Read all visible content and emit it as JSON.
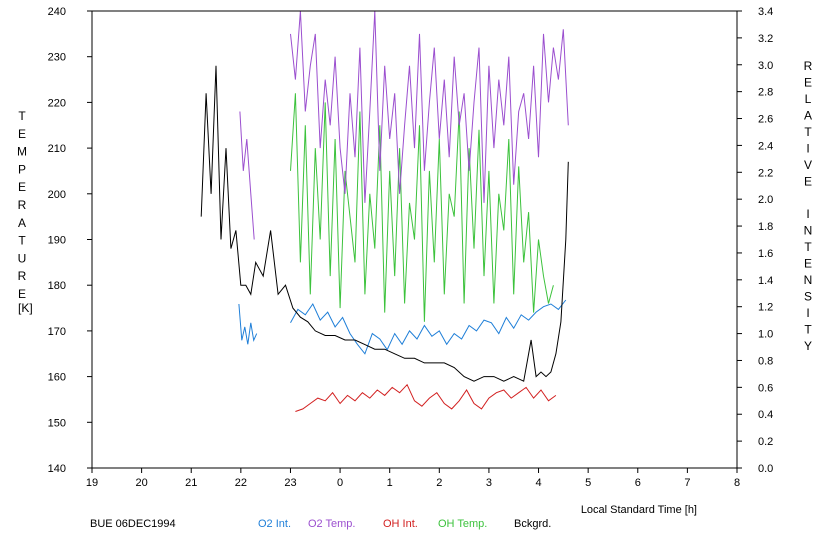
{
  "chart_data": {
    "type": "line",
    "title": "BUE 06DEC1994",
    "xlabel": "Local Standard Time [h]",
    "ylabel_left": "TEMPERATURE",
    "ylabel_left_unit": "[K]",
    "ylabel_right": "RELATIVE INTENSITY",
    "x_range": [
      19,
      32
    ],
    "x_ticks": [
      19,
      20,
      21,
      22,
      23,
      24,
      25,
      26,
      27,
      28,
      29,
      30,
      31,
      32
    ],
    "x_tick_labels": [
      "19",
      "20",
      "21",
      "22",
      "23",
      "0",
      "1",
      "2",
      "3",
      "4",
      "5",
      "6",
      "7",
      "8"
    ],
    "ylim_left": [
      140,
      240
    ],
    "y_ticks_left": [
      140,
      150,
      160,
      170,
      180,
      190,
      200,
      210,
      220,
      230,
      240
    ],
    "ylim_right": [
      0.0,
      3.4
    ],
    "y_ticks_right": [
      "0.0",
      "0.2",
      "0.4",
      "0.6",
      "0.8",
      "1.0",
      "1.2",
      "1.4",
      "1.6",
      "1.8",
      "2.0",
      "2.2",
      "2.4",
      "2.6",
      "2.8",
      "3.0",
      "3.2",
      "3.4"
    ],
    "grid": false,
    "legend_placement": "bottom",
    "series": [
      {
        "name": "O2 Int.",
        "axis": "right",
        "color": "#1f7fd8",
        "x": [
          21.96,
          22.02,
          22.08,
          22.14,
          22.2,
          22.26,
          22.32,
          23.0,
          23.15,
          23.3,
          23.45,
          23.6,
          23.75,
          23.9,
          24.05,
          24.2,
          24.35,
          24.5,
          24.65,
          24.8,
          24.95,
          25.1,
          25.25,
          25.4,
          25.55,
          25.7,
          25.85,
          26.0,
          26.15,
          26.3,
          26.45,
          26.6,
          26.75,
          26.9,
          27.05,
          27.2,
          27.35,
          27.5,
          27.65,
          27.8,
          27.95,
          28.1,
          28.25,
          28.4,
          28.55
        ],
        "y": [
          1.22,
          0.95,
          1.05,
          0.92,
          1.08,
          0.95,
          1.0,
          1.08,
          1.18,
          1.14,
          1.22,
          1.1,
          1.16,
          1.05,
          1.12,
          1.0,
          0.92,
          0.85,
          1.0,
          0.96,
          0.88,
          1.0,
          0.92,
          1.02,
          0.96,
          1.06,
          0.98,
          1.02,
          0.92,
          1.0,
          0.96,
          1.06,
          1.02,
          1.1,
          1.08,
          1.0,
          1.12,
          1.04,
          1.14,
          1.1,
          1.16,
          1.2,
          1.22,
          1.18,
          1.25
        ]
      },
      {
        "name": "O2 Temp.",
        "axis": "left",
        "color": "#9b4fcf",
        "x": [
          21.98,
          22.05,
          22.12,
          22.2,
          22.27,
          23.0,
          23.1,
          23.2,
          23.3,
          23.4,
          23.5,
          23.6,
          23.7,
          23.8,
          23.9,
          24.0,
          24.1,
          24.2,
          24.3,
          24.4,
          24.5,
          24.6,
          24.7,
          24.8,
          24.9,
          25.0,
          25.1,
          25.2,
          25.3,
          25.4,
          25.5,
          25.6,
          25.7,
          25.8,
          25.9,
          26.0,
          26.1,
          26.2,
          26.3,
          26.4,
          26.5,
          26.6,
          26.7,
          26.8,
          26.9,
          27.0,
          27.1,
          27.2,
          27.3,
          27.4,
          27.5,
          27.6,
          27.7,
          27.8,
          27.9,
          28.0,
          28.1,
          28.2,
          28.3,
          28.4,
          28.5,
          28.6
        ],
        "y": [
          218,
          205,
          212,
          200,
          190,
          235,
          225,
          240,
          218,
          228,
          235,
          210,
          225,
          215,
          230,
          210,
          200,
          222,
          208,
          232,
          198,
          218,
          240,
          205,
          228,
          212,
          222,
          200,
          215,
          228,
          210,
          235,
          205,
          220,
          232,
          212,
          225,
          208,
          230,
          215,
          222,
          205,
          220,
          232,
          198,
          228,
          210,
          225,
          215,
          230,
          202,
          218,
          222,
          212,
          228,
          208,
          235,
          220,
          232,
          225,
          236,
          215
        ]
      },
      {
        "name": "OH Int.",
        "axis": "right",
        "color": "#d22020",
        "x": [
          23.1,
          23.25,
          23.4,
          23.55,
          23.7,
          23.85,
          24.0,
          24.15,
          24.3,
          24.45,
          24.6,
          24.75,
          24.9,
          25.05,
          25.2,
          25.35,
          25.5,
          25.65,
          25.8,
          25.95,
          26.1,
          26.25,
          26.4,
          26.55,
          26.7,
          26.85,
          27.0,
          27.15,
          27.3,
          27.45,
          27.6,
          27.75,
          27.9,
          28.05,
          28.2,
          28.35
        ],
        "y": [
          0.42,
          0.44,
          0.48,
          0.52,
          0.5,
          0.56,
          0.48,
          0.54,
          0.5,
          0.56,
          0.52,
          0.58,
          0.54,
          0.6,
          0.56,
          0.62,
          0.5,
          0.46,
          0.52,
          0.56,
          0.48,
          0.44,
          0.5,
          0.58,
          0.48,
          0.44,
          0.52,
          0.56,
          0.58,
          0.52,
          0.56,
          0.6,
          0.52,
          0.58,
          0.5,
          0.54
        ]
      },
      {
        "name": "OH Temp.",
        "axis": "left",
        "color": "#3cc23c",
        "x": [
          23.0,
          23.1,
          23.2,
          23.3,
          23.4,
          23.5,
          23.6,
          23.7,
          23.8,
          23.9,
          24.0,
          24.1,
          24.2,
          24.3,
          24.4,
          24.5,
          24.6,
          24.7,
          24.8,
          24.9,
          25.0,
          25.1,
          25.2,
          25.3,
          25.4,
          25.5,
          25.6,
          25.7,
          25.8,
          25.9,
          26.0,
          26.1,
          26.2,
          26.3,
          26.4,
          26.5,
          26.6,
          26.7,
          26.8,
          26.9,
          27.0,
          27.1,
          27.2,
          27.3,
          27.4,
          27.5,
          27.6,
          27.7,
          27.8,
          27.9,
          28.0,
          28.1,
          28.2,
          28.3
        ],
        "y": [
          205,
          222,
          185,
          215,
          178,
          210,
          190,
          220,
          182,
          212,
          175,
          205,
          195,
          185,
          218,
          178,
          200,
          188,
          215,
          174,
          205,
          182,
          210,
          176,
          198,
          190,
          215,
          172,
          205,
          185,
          212,
          178,
          200,
          195,
          218,
          176,
          210,
          188,
          214,
          182,
          205,
          176,
          200,
          192,
          212,
          178,
          206,
          185,
          196,
          174,
          190,
          182,
          176,
          180
        ]
      },
      {
        "name": "Bckgrd.",
        "axis": "left",
        "color": "#000000",
        "x": [
          21.2,
          21.3,
          21.4,
          21.5,
          21.6,
          21.7,
          21.8,
          21.9,
          22.0,
          22.1,
          22.2,
          22.3,
          22.45,
          22.6,
          22.75,
          22.9,
          23.05,
          23.2,
          23.35,
          23.5,
          23.7,
          23.9,
          24.1,
          24.3,
          24.5,
          24.7,
          24.9,
          25.1,
          25.3,
          25.5,
          25.7,
          25.9,
          26.1,
          26.3,
          26.5,
          26.7,
          26.9,
          27.1,
          27.3,
          27.5,
          27.7,
          27.85,
          27.95,
          28.05,
          28.15,
          28.25,
          28.35,
          28.45,
          28.55,
          28.6
        ],
        "y": [
          195,
          222,
          200,
          228,
          190,
          210,
          188,
          192,
          180,
          180,
          178,
          185,
          182,
          192,
          178,
          180,
          175,
          173,
          172,
          170,
          169,
          169,
          168,
          168,
          167,
          166,
          166,
          165,
          164,
          164,
          163,
          163,
          163,
          162,
          160,
          159,
          160,
          160,
          159,
          160,
          159,
          168,
          160,
          161,
          160,
          161,
          165,
          172,
          190,
          207
        ]
      }
    ]
  }
}
